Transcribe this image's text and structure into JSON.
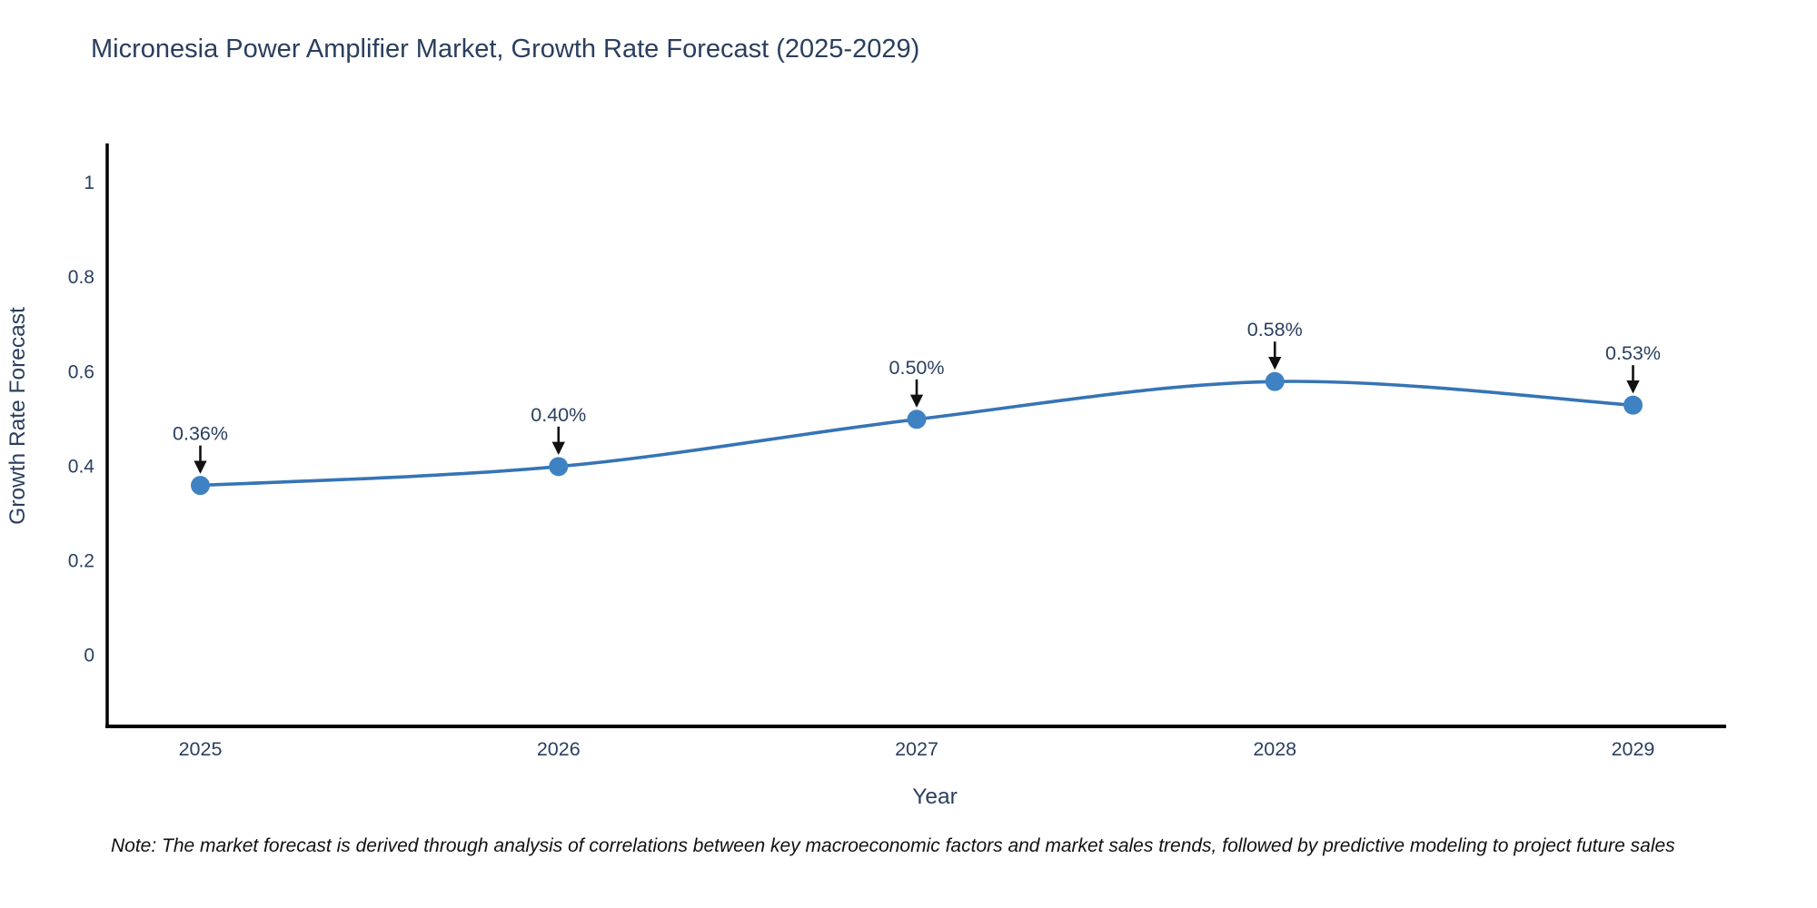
{
  "page": {
    "background": "#ffffff"
  },
  "chart_data": {
    "type": "line",
    "title": "Micronesia Power Amplifier Market, Growth Rate Forecast (2025-2029)",
    "xlabel": "Year",
    "ylabel": "Growth Rate Forecast",
    "x": [
      2025,
      2026,
      2027,
      2028,
      2029
    ],
    "y": [
      0.36,
      0.4,
      0.5,
      0.58,
      0.53
    ],
    "point_labels": [
      "0.36%",
      "0.40%",
      "0.50%",
      "0.58%",
      "0.53%"
    ],
    "x_tick_labels": [
      "2025",
      "2026",
      "2027",
      "2028",
      "2029"
    ],
    "y_ticks": [
      0,
      0.2,
      0.4,
      0.6,
      0.8,
      1
    ],
    "y_tick_labels": [
      "0",
      "0.2",
      "0.4",
      "0.6",
      "0.8",
      "1"
    ],
    "xlim": [
      2024.74,
      2029.26
    ],
    "ylim": [
      -0.15,
      1.08
    ],
    "grid": false,
    "legend": "none",
    "line_shape": "spline",
    "colors": {
      "line": "#3674b5",
      "marker": "#3f82c4",
      "arrow": "#111111",
      "text": "#2a3f5f",
      "axis": "#000000"
    }
  },
  "note": {
    "text": "Note: The market forecast is derived through analysis of correlations between key macroeconomic factors and market sales trends, followed by predictive modeling to project future sales"
  }
}
